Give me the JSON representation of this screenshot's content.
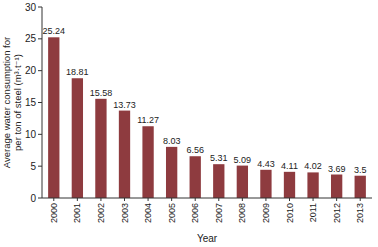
{
  "chart_data": {
    "type": "bar",
    "y_label": [
      "Average water consumption for",
      "per ton of steel (m³·t⁻¹)"
    ],
    "x_label": "Year",
    "categories": [
      "2000",
      "2001",
      "2002",
      "2003",
      "2004",
      "2005",
      "2006",
      "2007",
      "2008",
      "2009",
      "2010",
      "2011",
      "2012",
      "2013"
    ],
    "values": [
      25.24,
      18.81,
      15.58,
      13.73,
      11.27,
      8.03,
      6.56,
      5.31,
      5.09,
      4.43,
      4.11,
      4.02,
      3.69,
      3.5
    ],
    "color": "#8e3b3f",
    "ylim": [
      0,
      30
    ],
    "yticks": [
      0,
      5,
      10,
      15,
      20,
      25,
      30
    ],
    "grid": false,
    "data_labels": true
  }
}
